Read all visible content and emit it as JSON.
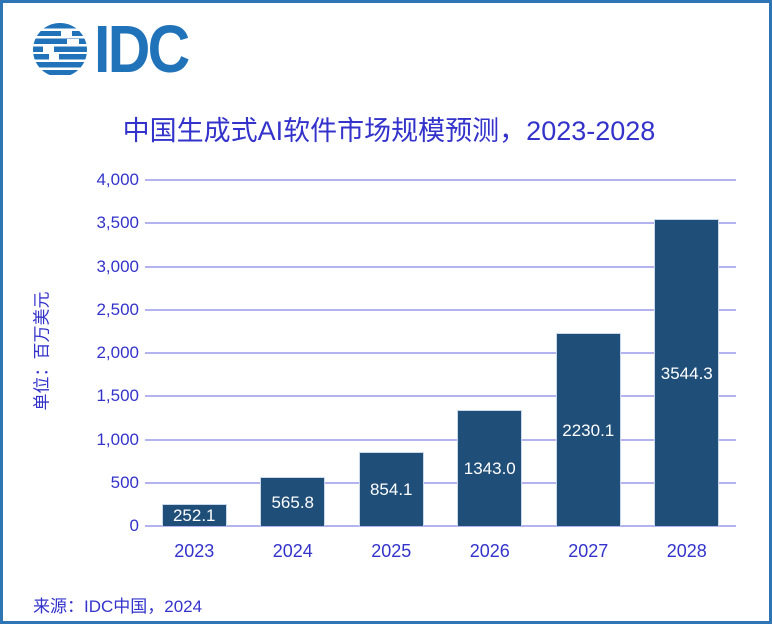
{
  "logo": {
    "text": "IDC"
  },
  "source": "来源：IDC中国，2024",
  "chart_data": {
    "type": "bar",
    "title": "中国生成式AI软件市场规模预测，2023-2028",
    "categories": [
      "2023",
      "2024",
      "2025",
      "2026",
      "2027",
      "2028"
    ],
    "values": [
      252.1,
      565.8,
      854.1,
      1343.0,
      2230.1,
      3544.3
    ],
    "value_labels": [
      "252.1",
      "565.8",
      "854.1",
      "1343.0",
      "2230.1",
      "3544.3"
    ],
    "xlabel": "",
    "ylabel": "单位：百万美元",
    "ylim": [
      0,
      4000
    ],
    "ytick_step": 500,
    "ytick_labels": [
      "0",
      "500",
      "1,000",
      "1,500",
      "2,000",
      "2,500",
      "3,000",
      "3,500",
      "4,000"
    ],
    "grid": true,
    "legend_position": "none",
    "value_labels_position": "center-inside"
  },
  "colors": {
    "accent_text": "#3333CC",
    "gridline": "#B3B3EF",
    "bar": "#1F4E79",
    "bar_edge": "#C9D9EA",
    "frame_border": "#2E75B6",
    "logo_blue": "#2173B9",
    "value_label": "#FFFFFF",
    "background": "#FFFFFF"
  }
}
